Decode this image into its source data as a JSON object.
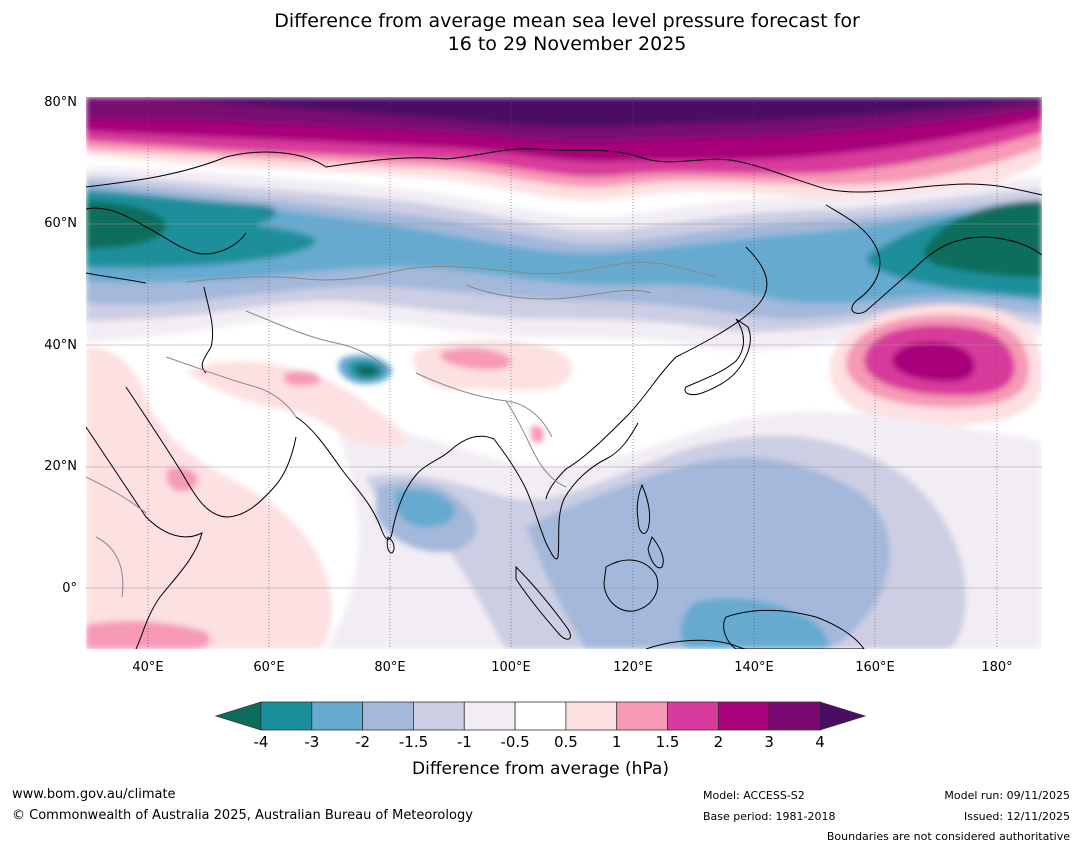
{
  "title": {
    "line1": "Difference from average mean sea level pressure forecast for",
    "line2": "16 to 29 November 2025"
  },
  "chart_data": {
    "type": "filled-contour-map",
    "variable": "Mean sea level pressure difference from average",
    "units": "hPa",
    "lon_range": [
      30,
      190
    ],
    "lat_range": [
      -10,
      80
    ],
    "lat_ticks": [
      "80°N",
      "60°N",
      "40°N",
      "20°N",
      "0°"
    ],
    "lon_ticks": [
      "40°E",
      "60°E",
      "80°E",
      "100°E",
      "120°E",
      "140°E",
      "160°E",
      "180°"
    ],
    "legend": {
      "title": "Difference from average (hPa)",
      "tick_labels": [
        "-4",
        "-3",
        "-2",
        "-1.5",
        "-1",
        "-0.5",
        "0.5",
        "1",
        "1.5",
        "2",
        "3",
        "4"
      ],
      "colors": [
        "#0b6e5c",
        "#1b8f9b",
        "#66aad0",
        "#a3b8da",
        "#cccee3",
        "#f2edf4",
        "#ffffff",
        "#fde0e1",
        "#f69ab6",
        "#d83b9b",
        "#a8037a",
        "#7a0a72",
        "#4b0d64"
      ],
      "extend": "both"
    },
    "features": [
      {
        "name": "Arctic high anomaly",
        "center": [
          110,
          78
        ],
        "value": ">4"
      },
      {
        "name": "North Pacific high anomaly",
        "center": [
          168,
          36
        ],
        "value": "3 to 4"
      },
      {
        "name": "Bering Sea low anomaly",
        "center": [
          180,
          58
        ],
        "value": "<-4"
      },
      {
        "name": "Scandinavia/Western Russia low anomaly",
        "center": [
          35,
          60
        ],
        "value": "-3 to -4"
      },
      {
        "name": "Tropical Pacific low anomaly",
        "center": [
          140,
          5
        ],
        "value": "-1.5 to -2"
      },
      {
        "name": "Bay of Bengal low anomaly",
        "center": [
          84,
          14
        ],
        "value": "-2 to -3"
      },
      {
        "name": "Pamir low anomaly",
        "center": [
          75,
          36
        ],
        "value": "<-4"
      }
    ]
  },
  "footer": {
    "website": "www.bom.gov.au/climate",
    "copyright": "© Commonwealth of Australia 2025, Australian Bureau of Meteorology",
    "model": "Model: ACCESS-S2",
    "base_period": "Base period: 1981-2018",
    "model_run": "Model run: 09/11/2025",
    "issued": "Issued: 12/11/2025",
    "disclaimer": "Boundaries are not considered authoritative"
  }
}
